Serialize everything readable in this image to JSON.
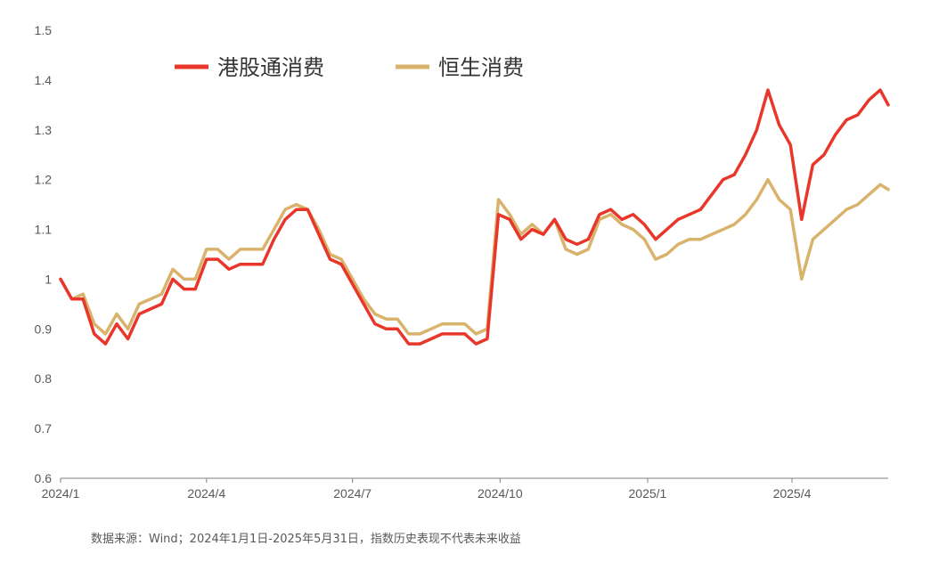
{
  "chart_data": {
    "type": "line",
    "title": "",
    "xlabel": "",
    "ylabel": "",
    "ylim": [
      0.6,
      1.5
    ],
    "yticks": [
      "0.6",
      "0.7",
      "0.8",
      "0.9",
      "1",
      "1.1",
      "1.2",
      "1.3",
      "1.4",
      "1.5"
    ],
    "xticks": [
      {
        "label": "2024/1",
        "date": "2024-01-01"
      },
      {
        "label": "2024/4",
        "date": "2024-04-01"
      },
      {
        "label": "2024/7",
        "date": "2024-07-01"
      },
      {
        "label": "2024/10",
        "date": "2024-10-01"
      },
      {
        "label": "2025/1",
        "date": "2025-01-01"
      },
      {
        "label": "2025/4",
        "date": "2025-04-01"
      }
    ],
    "x_range": [
      "2024-01-01",
      "2025-05-31"
    ],
    "legend_position": "top-left",
    "grid": false,
    "series": [
      {
        "name": "港股通消费",
        "color": "#e8372a",
        "points": [
          [
            "2024-01-01",
            1.0
          ],
          [
            "2024-01-08",
            0.96
          ],
          [
            "2024-01-15",
            0.96
          ],
          [
            "2024-01-22",
            0.89
          ],
          [
            "2024-01-29",
            0.87
          ],
          [
            "2024-02-05",
            0.91
          ],
          [
            "2024-02-12",
            0.88
          ],
          [
            "2024-02-19",
            0.93
          ],
          [
            "2024-02-26",
            0.94
          ],
          [
            "2024-03-04",
            0.95
          ],
          [
            "2024-03-11",
            1.0
          ],
          [
            "2024-03-18",
            0.98
          ],
          [
            "2024-03-25",
            0.98
          ],
          [
            "2024-04-01",
            1.04
          ],
          [
            "2024-04-08",
            1.04
          ],
          [
            "2024-04-15",
            1.02
          ],
          [
            "2024-04-22",
            1.03
          ],
          [
            "2024-04-29",
            1.03
          ],
          [
            "2024-05-06",
            1.03
          ],
          [
            "2024-05-13",
            1.08
          ],
          [
            "2024-05-20",
            1.12
          ],
          [
            "2024-05-27",
            1.14
          ],
          [
            "2024-06-03",
            1.14
          ],
          [
            "2024-06-10",
            1.09
          ],
          [
            "2024-06-17",
            1.04
          ],
          [
            "2024-06-24",
            1.03
          ],
          [
            "2024-07-01",
            0.99
          ],
          [
            "2024-07-08",
            0.95
          ],
          [
            "2024-07-15",
            0.91
          ],
          [
            "2024-07-22",
            0.9
          ],
          [
            "2024-07-29",
            0.9
          ],
          [
            "2024-08-05",
            0.87
          ],
          [
            "2024-08-12",
            0.87
          ],
          [
            "2024-08-19",
            0.88
          ],
          [
            "2024-08-26",
            0.89
          ],
          [
            "2024-09-02",
            0.89
          ],
          [
            "2024-09-09",
            0.89
          ],
          [
            "2024-09-16",
            0.87
          ],
          [
            "2024-09-23",
            0.88
          ],
          [
            "2024-09-30",
            1.13
          ],
          [
            "2024-10-07",
            1.12
          ],
          [
            "2024-10-14",
            1.08
          ],
          [
            "2024-10-21",
            1.1
          ],
          [
            "2024-10-28",
            1.09
          ],
          [
            "2024-11-04",
            1.12
          ],
          [
            "2024-11-11",
            1.08
          ],
          [
            "2024-11-18",
            1.07
          ],
          [
            "2024-11-25",
            1.08
          ],
          [
            "2024-12-02",
            1.13
          ],
          [
            "2024-12-09",
            1.14
          ],
          [
            "2024-12-16",
            1.12
          ],
          [
            "2024-12-23",
            1.13
          ],
          [
            "2024-12-30",
            1.11
          ],
          [
            "2025-01-06",
            1.08
          ],
          [
            "2025-01-13",
            1.1
          ],
          [
            "2025-01-20",
            1.12
          ],
          [
            "2025-01-27",
            1.13
          ],
          [
            "2025-02-03",
            1.14
          ],
          [
            "2025-02-10",
            1.17
          ],
          [
            "2025-02-17",
            1.2
          ],
          [
            "2025-02-24",
            1.21
          ],
          [
            "2025-03-03",
            1.25
          ],
          [
            "2025-03-10",
            1.3
          ],
          [
            "2025-03-17",
            1.38
          ],
          [
            "2025-03-24",
            1.31
          ],
          [
            "2025-03-31",
            1.27
          ],
          [
            "2025-04-07",
            1.12
          ],
          [
            "2025-04-14",
            1.23
          ],
          [
            "2025-04-21",
            1.25
          ],
          [
            "2025-04-28",
            1.29
          ],
          [
            "2025-05-05",
            1.32
          ],
          [
            "2025-05-12",
            1.33
          ],
          [
            "2025-05-19",
            1.36
          ],
          [
            "2025-05-26",
            1.38
          ],
          [
            "2025-05-31",
            1.35
          ]
        ]
      },
      {
        "name": "恒生消费",
        "color": "#d9b36b",
        "points": [
          [
            "2024-01-01",
            1.0
          ],
          [
            "2024-01-08",
            0.96
          ],
          [
            "2024-01-15",
            0.97
          ],
          [
            "2024-01-22",
            0.91
          ],
          [
            "2024-01-29",
            0.89
          ],
          [
            "2024-02-05",
            0.93
          ],
          [
            "2024-02-12",
            0.9
          ],
          [
            "2024-02-19",
            0.95
          ],
          [
            "2024-02-26",
            0.96
          ],
          [
            "2024-03-04",
            0.97
          ],
          [
            "2024-03-11",
            1.02
          ],
          [
            "2024-03-18",
            1.0
          ],
          [
            "2024-03-25",
            1.0
          ],
          [
            "2024-04-01",
            1.06
          ],
          [
            "2024-04-08",
            1.06
          ],
          [
            "2024-04-15",
            1.04
          ],
          [
            "2024-04-22",
            1.06
          ],
          [
            "2024-04-29",
            1.06
          ],
          [
            "2024-05-06",
            1.06
          ],
          [
            "2024-05-13",
            1.1
          ],
          [
            "2024-05-20",
            1.14
          ],
          [
            "2024-05-27",
            1.15
          ],
          [
            "2024-06-03",
            1.14
          ],
          [
            "2024-06-10",
            1.1
          ],
          [
            "2024-06-17",
            1.05
          ],
          [
            "2024-06-24",
            1.04
          ],
          [
            "2024-07-01",
            1.0
          ],
          [
            "2024-07-08",
            0.96
          ],
          [
            "2024-07-15",
            0.93
          ],
          [
            "2024-07-22",
            0.92
          ],
          [
            "2024-07-29",
            0.92
          ],
          [
            "2024-08-05",
            0.89
          ],
          [
            "2024-08-12",
            0.89
          ],
          [
            "2024-08-19",
            0.9
          ],
          [
            "2024-08-26",
            0.91
          ],
          [
            "2024-09-02",
            0.91
          ],
          [
            "2024-09-09",
            0.91
          ],
          [
            "2024-09-16",
            0.89
          ],
          [
            "2024-09-23",
            0.9
          ],
          [
            "2024-09-30",
            1.16
          ],
          [
            "2024-10-07",
            1.13
          ],
          [
            "2024-10-14",
            1.09
          ],
          [
            "2024-10-21",
            1.11
          ],
          [
            "2024-10-28",
            1.09
          ],
          [
            "2024-11-04",
            1.12
          ],
          [
            "2024-11-11",
            1.06
          ],
          [
            "2024-11-18",
            1.05
          ],
          [
            "2024-11-25",
            1.06
          ],
          [
            "2024-12-02",
            1.12
          ],
          [
            "2024-12-09",
            1.13
          ],
          [
            "2024-12-16",
            1.11
          ],
          [
            "2024-12-23",
            1.1
          ],
          [
            "2024-12-30",
            1.08
          ],
          [
            "2025-01-06",
            1.04
          ],
          [
            "2025-01-13",
            1.05
          ],
          [
            "2025-01-20",
            1.07
          ],
          [
            "2025-01-27",
            1.08
          ],
          [
            "2025-02-03",
            1.08
          ],
          [
            "2025-02-10",
            1.09
          ],
          [
            "2025-02-17",
            1.1
          ],
          [
            "2025-02-24",
            1.11
          ],
          [
            "2025-03-03",
            1.13
          ],
          [
            "2025-03-10",
            1.16
          ],
          [
            "2025-03-17",
            1.2
          ],
          [
            "2025-03-24",
            1.16
          ],
          [
            "2025-03-31",
            1.14
          ],
          [
            "2025-04-07",
            1.0
          ],
          [
            "2025-04-14",
            1.08
          ],
          [
            "2025-04-21",
            1.1
          ],
          [
            "2025-04-28",
            1.12
          ],
          [
            "2025-05-05",
            1.14
          ],
          [
            "2025-05-12",
            1.15
          ],
          [
            "2025-05-19",
            1.17
          ],
          [
            "2025-05-26",
            1.19
          ],
          [
            "2025-05-31",
            1.18
          ]
        ]
      }
    ]
  },
  "source_note": "数据来源：Wind；2024年1月1日-2025年5月31日，指数历史表现不代表未来收益"
}
